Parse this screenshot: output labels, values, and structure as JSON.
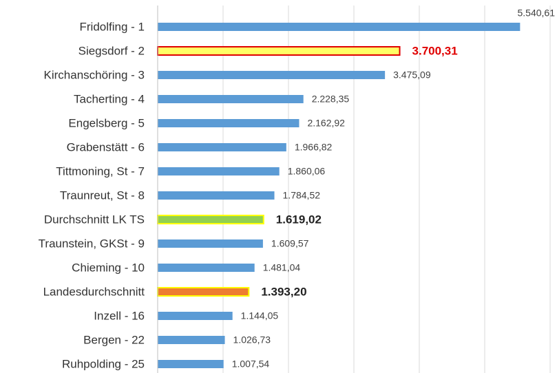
{
  "chart_data": {
    "type": "barh",
    "categories": [
      "Fridolfing - 1",
      "Siegsdorf - 2",
      "Kirchanschöring - 3",
      "Tacherting - 4",
      "Engelsberg - 5",
      "Grabenstätt - 6",
      "Tittmoning, St - 7",
      "Traunreut, St - 8",
      "Durchschnitt LK TS",
      "Traunstein, GKSt - 9",
      "Chieming - 10",
      "Landesdurchschnitt",
      "Inzell - 16",
      "Bergen - 22",
      "Ruhpolding - 25"
    ],
    "values": [
      5540.61,
      3700.31,
      3475.09,
      2228.35,
      2162.92,
      1966.82,
      1860.06,
      1784.52,
      1619.02,
      1609.57,
      1481.04,
      1393.2,
      1144.05,
      1026.73,
      1007.54
    ],
    "value_labels": [
      "5.540,61",
      "3.700,31",
      "3.475,09",
      "2.228,35",
      "2.162,92",
      "1.966,82",
      "1.860,06",
      "1.784,52",
      "1.619,02",
      "1.609,57",
      "1.481,04",
      "1.393,20",
      "1.144,05",
      "1.026,73",
      "1.007,54"
    ],
    "colors": [
      "#5b9bd5",
      "#ffff66",
      "#5b9bd5",
      "#5b9bd5",
      "#5b9bd5",
      "#5b9bd5",
      "#5b9bd5",
      "#5b9bd5",
      "#92d050",
      "#5b9bd5",
      "#5b9bd5",
      "#ed7d31",
      "#5b9bd5",
      "#5b9bd5",
      "#5b9bd5"
    ],
    "edgecolors": [
      null,
      "#e00000",
      null,
      null,
      null,
      null,
      null,
      null,
      "#ffff00",
      null,
      null,
      "#ffff00",
      null,
      null,
      null
    ],
    "value_label_colors": [
      "#404040",
      "#e00000",
      "#404040",
      "#404040",
      "#404040",
      "#404040",
      "#404040",
      "#404040",
      "#222222",
      "#404040",
      "#404040",
      "#222222",
      "#404040",
      "#404040",
      "#404040"
    ],
    "value_label_bold": [
      false,
      true,
      false,
      false,
      false,
      false,
      false,
      false,
      true,
      false,
      false,
      true,
      false,
      false,
      false
    ],
    "xlim": [
      0,
      6000
    ],
    "xticks": [
      0,
      1000,
      2000,
      3000,
      4000,
      5000,
      6000
    ],
    "grid": true
  }
}
